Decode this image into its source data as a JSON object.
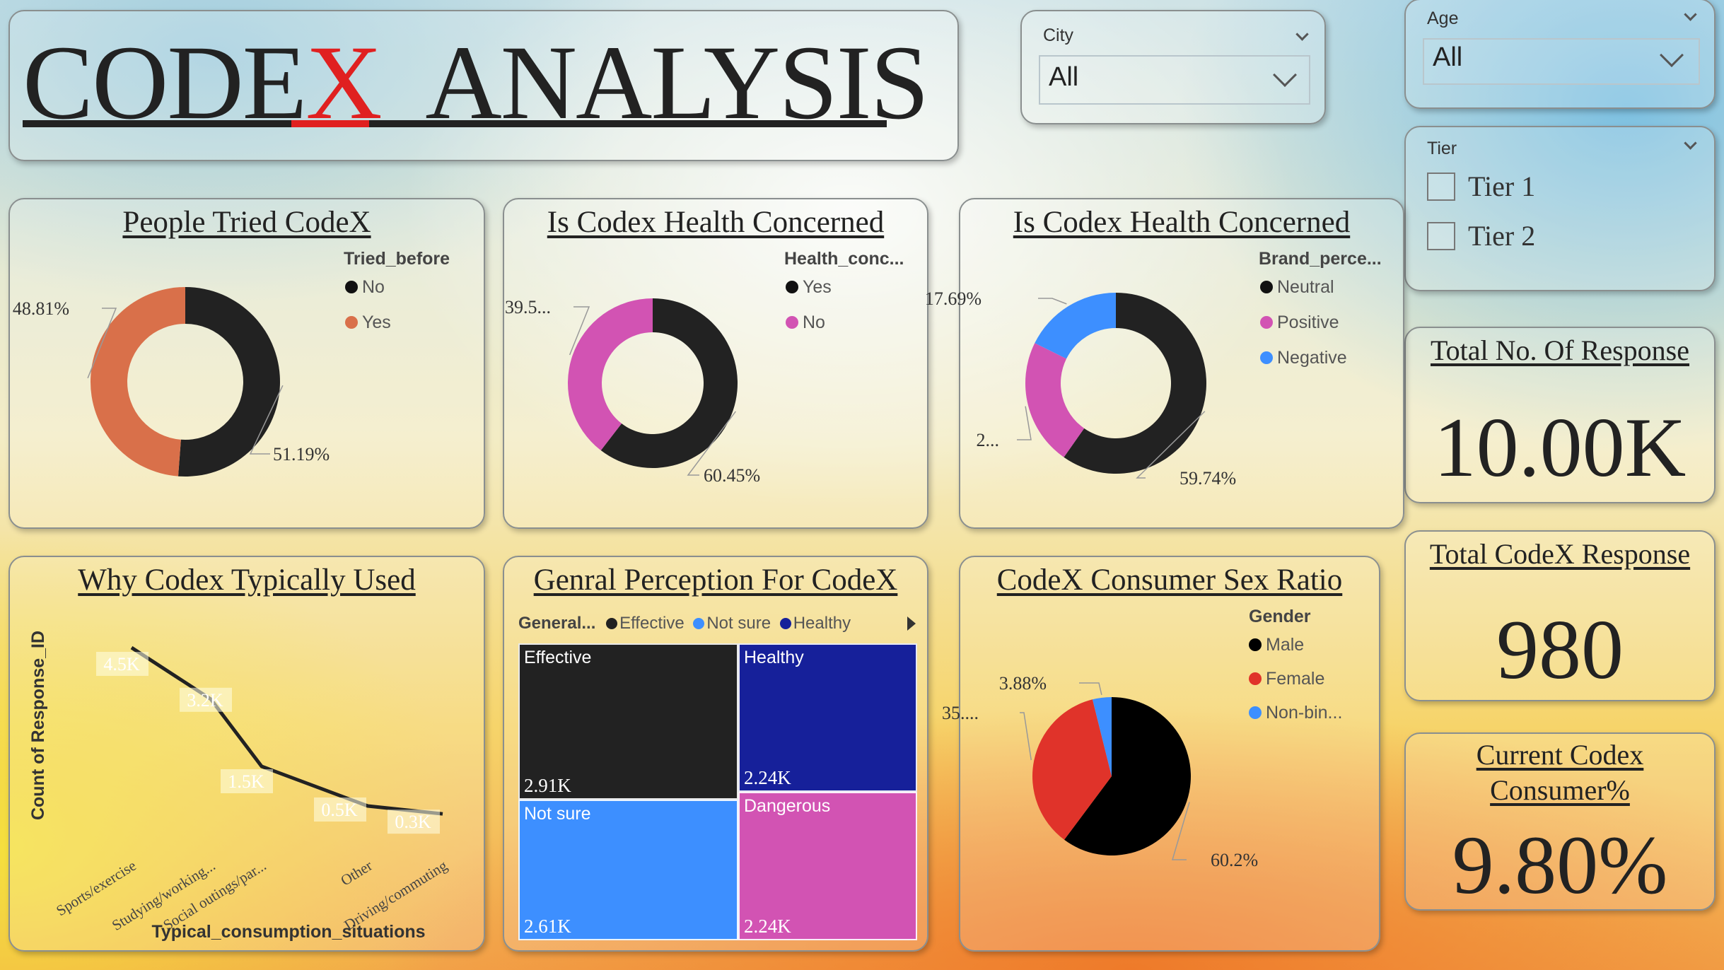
{
  "header": {
    "title_part1": "CODE",
    "title_x": "X",
    "title_part2": "  ANALYSIS"
  },
  "filters": {
    "city": {
      "label": "City",
      "value": "All"
    },
    "age": {
      "label": "Age",
      "value": "All"
    },
    "tier": {
      "label": "Tier",
      "options": [
        "Tier 1",
        "Tier 2"
      ]
    }
  },
  "kpis": {
    "total_responses": {
      "label": "Total No. Of Response",
      "value": "10.00K"
    },
    "total_codex": {
      "label": "Total CodeX Response",
      "value": "980"
    },
    "current_consumer": {
      "label_line1": "Current Codex",
      "label_line2": "Consumer%",
      "value": "9.80%"
    }
  },
  "colors": {
    "black": "#222222",
    "orange": "#d9704a",
    "magenta": "#d253b3",
    "blue": "#3d8fff",
    "navy": "#16209a",
    "red": "#e0332a",
    "pure_black": "#000000"
  },
  "chart_data": [
    {
      "id": "tried",
      "type": "pie",
      "donut": true,
      "title": "People Tried CodeX",
      "legend_title": "Tried_before",
      "legend_position": "top-right",
      "series": [
        {
          "name": "No",
          "value": 51.19,
          "label": "51.19%",
          "color": "#222222"
        },
        {
          "name": "Yes",
          "value": 48.81,
          "label": "48.81%",
          "color": "#d9704a"
        }
      ]
    },
    {
      "id": "health",
      "type": "pie",
      "donut": true,
      "title": "Is Codex Health Concerned",
      "legend_title": "Health_conc...",
      "legend_position": "top-right",
      "series": [
        {
          "name": "Yes",
          "value": 60.45,
          "label": "60.45%",
          "color": "#222222"
        },
        {
          "name": "No",
          "value": 39.55,
          "label": "39.5...",
          "color": "#d253b3"
        }
      ]
    },
    {
      "id": "brand",
      "type": "pie",
      "donut": true,
      "title": "Is Codex Health Concerned",
      "legend_title": "Brand_perce...",
      "legend_position": "top-right",
      "series": [
        {
          "name": "Neutral",
          "value": 59.74,
          "label": "59.74%",
          "color": "#222222"
        },
        {
          "name": "Positive",
          "value": 22.57,
          "label": "2...",
          "color": "#d253b3"
        },
        {
          "name": "Negative",
          "value": 17.69,
          "label": "17.69%",
          "color": "#3d8fff"
        }
      ]
    },
    {
      "id": "usage",
      "type": "line",
      "title": "Why Codex Typically Used",
      "xlabel": "Typical_consumption_situations",
      "ylabel": "Count of Response_ID",
      "categories": [
        "Sports/exercise",
        "Studying/working...",
        "Social outings/par...",
        "Other",
        "Driving/commuting"
      ],
      "values": [
        4.5,
        3.2,
        1.5,
        0.5,
        0.3
      ],
      "data_labels": [
        "4.5K",
        "3.2K",
        "1.5K",
        "0.5K",
        "0.3K"
      ],
      "ylim": [
        0,
        5
      ]
    },
    {
      "id": "perception",
      "type": "treemap",
      "title": "Genral Perception For CodeX",
      "legend_title": "General...",
      "legend_position": "top",
      "legend": [
        {
          "name": "Effective",
          "color": "#222222"
        },
        {
          "name": "Not sure",
          "color": "#3d8fff"
        },
        {
          "name": "Healthy",
          "color": "#16209a"
        }
      ],
      "series": [
        {
          "name": "Effective",
          "value": 2.91,
          "label": "2.91K",
          "color": "#222222"
        },
        {
          "name": "Not sure",
          "value": 2.61,
          "label": "2.61K",
          "color": "#3d8fff"
        },
        {
          "name": "Healthy",
          "value": 2.24,
          "label": "2.24K",
          "color": "#16209a"
        },
        {
          "name": "Dangerous",
          "value": 2.24,
          "label": "2.24K",
          "color": "#d253b3"
        }
      ]
    },
    {
      "id": "gender",
      "type": "pie",
      "donut": false,
      "title": "CodeX Consumer Sex Ratio",
      "legend_title": "Gender",
      "legend_position": "top-right",
      "series": [
        {
          "name": "Male",
          "value": 60.2,
          "label": "60.2%",
          "color": "#000000"
        },
        {
          "name": "Female",
          "value": 35.92,
          "label": "35....",
          "color": "#e0332a"
        },
        {
          "name": "Non-bin...",
          "value": 3.88,
          "label": "3.88%",
          "color": "#3d8fff"
        }
      ]
    }
  ]
}
